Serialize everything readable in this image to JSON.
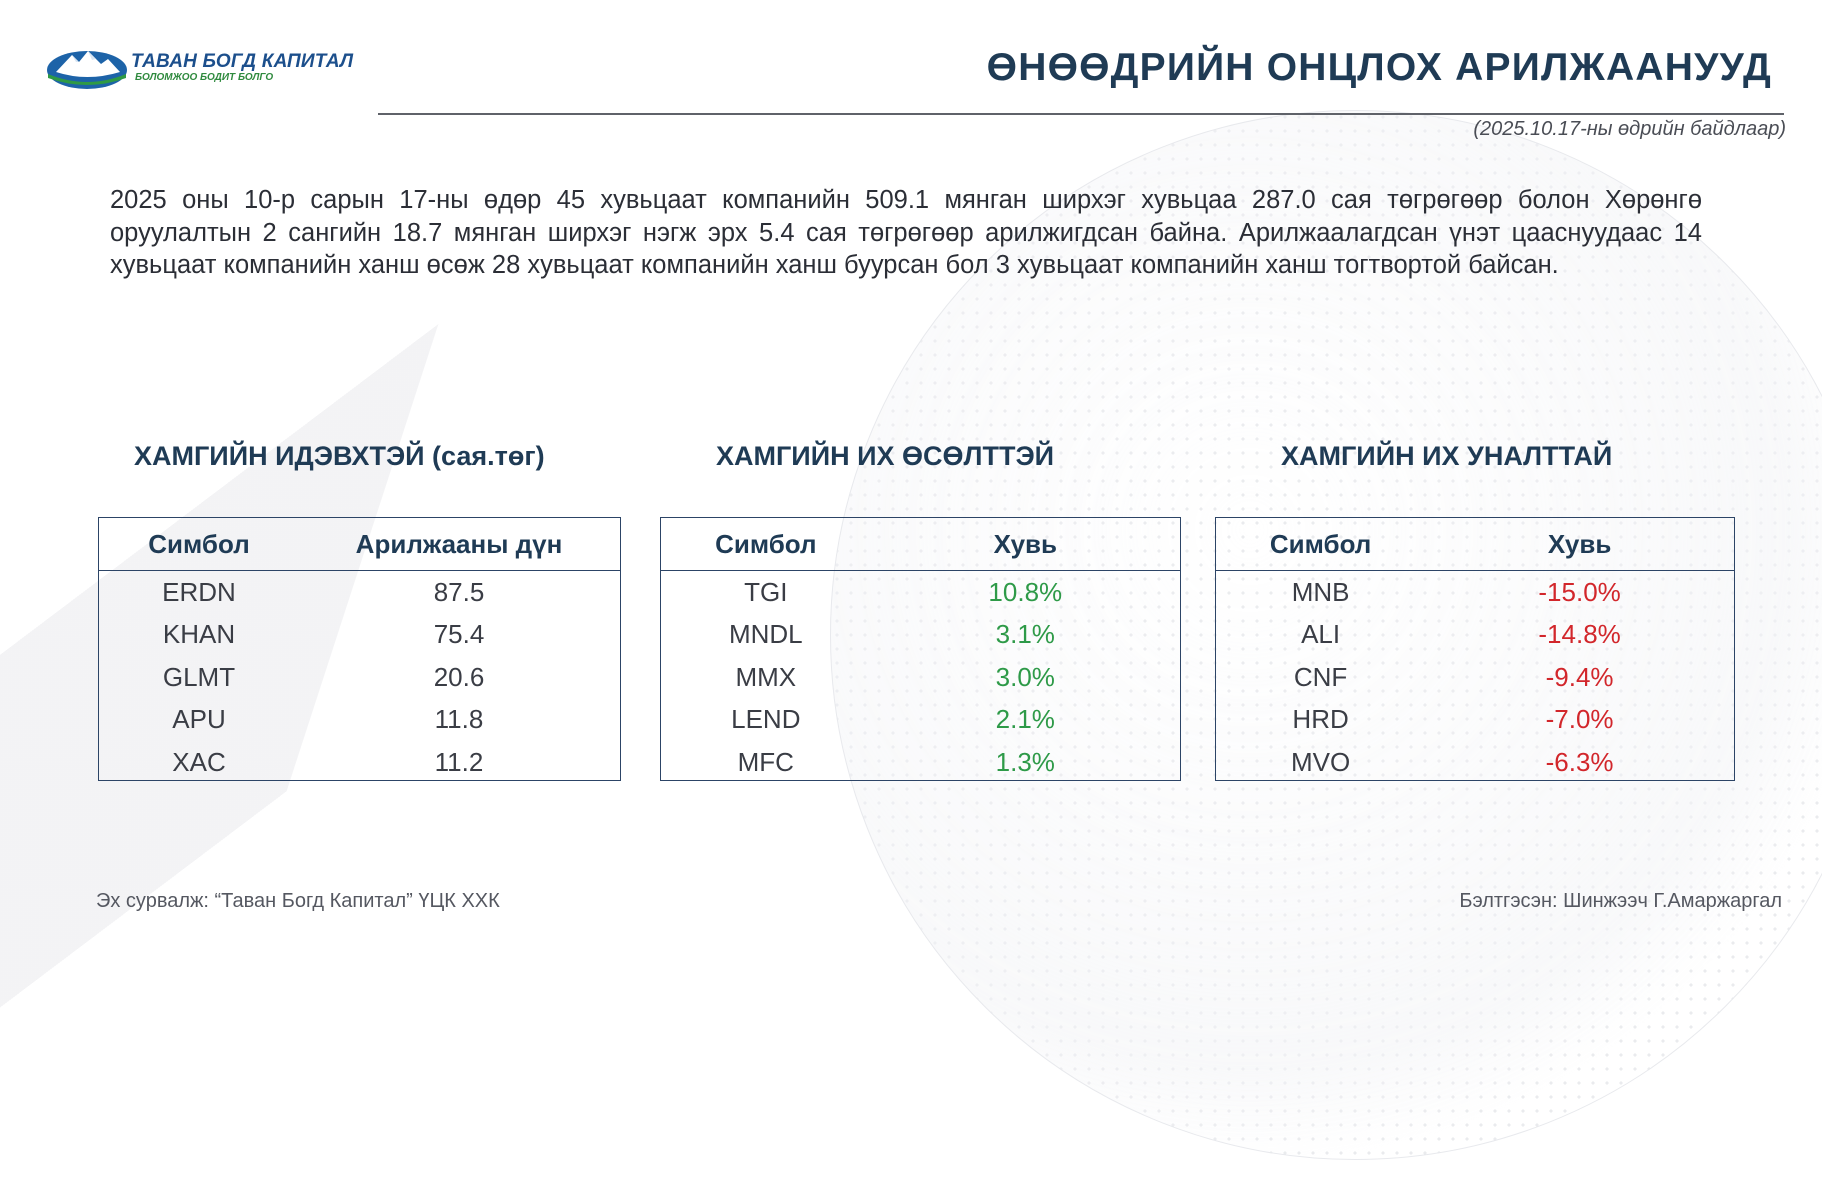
{
  "header": {
    "logo_name": "ТАВАН БОГД КАПИТАЛ",
    "logo_slogan": "БОЛОМЖОО БОДИТ БОЛГО",
    "title": "ӨНӨӨДРИЙН ОНЦЛОХ АРИЛЖААНУУД",
    "date_note": "(2025.10.17-ны өдрийн байдлаар)"
  },
  "summary": "2025 оны 10-р сарын 17-ны өдөр 45 хувьцаат компанийн 509.1 мянган ширхэг хувьцаа 287.0 сая төгрөгөөр болон Хөрөнгө оруулалтын 2 сангийн 18.7 мянган ширхэг нэгж эрх 5.4 сая төгрөгөөр арилжигдсан байна. Арилжаалагдсан үнэт цааснуудаас 14 хувьцаат компанийн ханш өсөж 28 хувьцаат компанийн ханш буурсан бол 3 хувьцаат компанийн ханш тогтвортой байсан.",
  "active": {
    "title": "ХАМГИЙН ИДЭВХТЭЙ (сая.төг)",
    "col_symbol": "Симбол",
    "col_value": "Арилжааны дүн",
    "rows": [
      {
        "symbol": "ERDN",
        "value": "87.5"
      },
      {
        "symbol": "KHAN",
        "value": "75.4"
      },
      {
        "symbol": "GLMT",
        "value": "20.6"
      },
      {
        "symbol": "APU",
        "value": "11.8"
      },
      {
        "symbol": "XAC",
        "value": "11.2"
      }
    ]
  },
  "gainers": {
    "title": "ХАМГИЙН ИХ ӨСӨЛТТЭЙ",
    "col_symbol": "Симбол",
    "col_value": "Хувь",
    "rows": [
      {
        "symbol": "TGI",
        "value": "10.8%"
      },
      {
        "symbol": "MNDL",
        "value": "3.1%"
      },
      {
        "symbol": "MMX",
        "value": "3.0%"
      },
      {
        "symbol": "LEND",
        "value": "2.1%"
      },
      {
        "symbol": "MFC",
        "value": "1.3%"
      }
    ]
  },
  "losers": {
    "title": "ХАМГИЙН ИХ УНАЛТТАЙ",
    "col_symbol": "Симбол",
    "col_value": "Хувь",
    "rows": [
      {
        "symbol": "MNB",
        "value": "-15.0%"
      },
      {
        "symbol": "ALI",
        "value": "-14.8%"
      },
      {
        "symbol": "CNF",
        "value": "-9.4%"
      },
      {
        "symbol": "HRD",
        "value": "-7.0%"
      },
      {
        "symbol": "MVO",
        "value": "-6.3%"
      }
    ]
  },
  "footer": {
    "source": "Эх сурвалж: “Таван Богд Капитал” ҮЦК ХХК",
    "prepared_by": "Бэлтгэсэн: Шинжээч Г.Амаржаргал"
  },
  "colors": {
    "title": "#1f3b55",
    "positive": "#2e9a48",
    "negative": "#d2262b",
    "table_border": "#2c4466"
  }
}
